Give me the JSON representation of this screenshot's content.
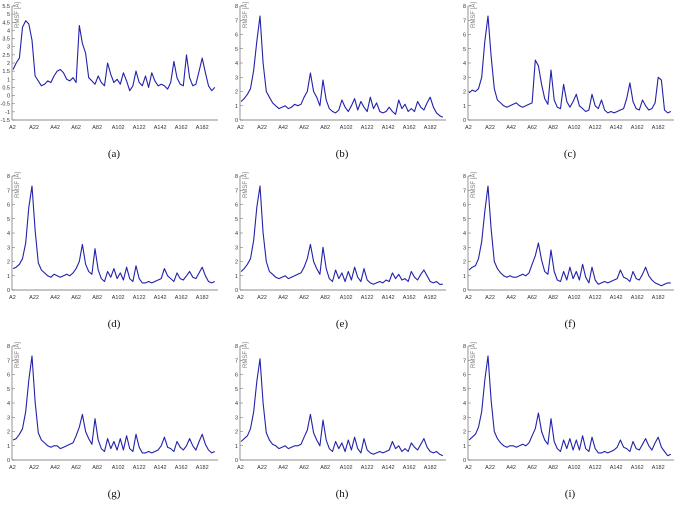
{
  "colors": {
    "line": "#2222aa",
    "axis": "#666666",
    "grid": "#d8d8d8"
  },
  "chart_data": [
    {
      "type": "line",
      "caption": "(a)",
      "ylabel": "RMSF [Å]",
      "xtick_labels": [
        "A2",
        "A22",
        "A42",
        "A62",
        "A82",
        "A102",
        "A122",
        "A142",
        "A162",
        "A182"
      ],
      "yticks": [
        -1.5,
        -1,
        -0.5,
        0,
        0.5,
        1,
        1.5,
        2,
        2.5,
        3,
        3.5,
        4,
        4.5,
        5,
        5.5
      ],
      "ylim": [
        -1.5,
        5.5
      ],
      "x": [
        1,
        4,
        7,
        10,
        13,
        16,
        19,
        22,
        25,
        28,
        31,
        34,
        37,
        40,
        43,
        46,
        49,
        52,
        55,
        58,
        61,
        64,
        67,
        70,
        73,
        76,
        79,
        82,
        85,
        88,
        91,
        94,
        97,
        100,
        103,
        106,
        109,
        112,
        115,
        118,
        121,
        124,
        127,
        130,
        133,
        136,
        139,
        142,
        145,
        148,
        151,
        154,
        157,
        160,
        163,
        166,
        169,
        172,
        175,
        178,
        181,
        184,
        187,
        190,
        193
      ],
      "values": [
        1.6,
        2.0,
        2.3,
        4.2,
        4.6,
        4.4,
        3.4,
        1.2,
        0.9,
        0.6,
        0.7,
        0.9,
        0.8,
        1.2,
        1.5,
        1.6,
        1.4,
        1.0,
        0.9,
        1.1,
        0.8,
        4.3,
        3.2,
        2.6,
        1.1,
        0.9,
        0.7,
        1.2,
        0.8,
        0.6,
        2.0,
        1.3,
        0.8,
        1.0,
        0.7,
        1.4,
        0.9,
        0.3,
        0.6,
        1.5,
        0.8,
        0.6,
        1.2,
        0.5,
        1.4,
        0.9,
        0.6,
        0.7,
        0.6,
        0.4,
        0.8,
        2.1,
        1.1,
        0.7,
        0.6,
        2.5,
        1.1,
        0.6,
        0.7,
        1.5,
        2.3,
        1.4,
        0.6,
        0.3,
        0.5
      ]
    },
    {
      "type": "line",
      "caption": "(b)",
      "ylabel": "RMSF [Å]",
      "xtick_labels": [
        "A2",
        "A22",
        "A42",
        "A62",
        "A82",
        "A102",
        "A122",
        "A142",
        "A162",
        "A182"
      ],
      "yticks": [
        0,
        1,
        2,
        3,
        4,
        5,
        6,
        7,
        8
      ],
      "ylim": [
        0,
        8
      ],
      "x": [
        1,
        4,
        7,
        10,
        13,
        16,
        19,
        22,
        25,
        28,
        31,
        34,
        37,
        40,
        43,
        46,
        49,
        52,
        55,
        58,
        61,
        64,
        67,
        70,
        73,
        76,
        79,
        82,
        85,
        88,
        91,
        94,
        97,
        100,
        103,
        106,
        109,
        112,
        115,
        118,
        121,
        124,
        127,
        130,
        133,
        136,
        139,
        142,
        145,
        148,
        151,
        154,
        157,
        160,
        163,
        166,
        169,
        172,
        175,
        178,
        181,
        184,
        187,
        190,
        193
      ],
      "values": [
        1.3,
        1.5,
        1.8,
        2.2,
        3.5,
        5.5,
        7.3,
        4.0,
        2.0,
        1.6,
        1.2,
        1.0,
        0.8,
        0.9,
        1.0,
        0.8,
        0.9,
        1.1,
        1.0,
        1.1,
        1.6,
        2.0,
        3.3,
        2.0,
        1.6,
        1.0,
        2.8,
        1.4,
        0.8,
        0.6,
        0.5,
        0.7,
        1.4,
        0.9,
        0.6,
        1.0,
        1.5,
        0.7,
        1.3,
        0.9,
        0.6,
        1.6,
        0.8,
        1.2,
        0.6,
        0.5,
        0.6,
        0.9,
        0.6,
        0.4,
        1.4,
        0.8,
        1.1,
        0.6,
        0.8,
        0.6,
        1.3,
        0.9,
        0.7,
        1.2,
        1.6,
        0.9,
        0.5,
        0.3,
        0.2
      ]
    },
    {
      "type": "line",
      "caption": "(c)",
      "ylabel": "RMSF [Å]",
      "xtick_labels": [
        "A2",
        "A22",
        "A42",
        "A62",
        "A82",
        "A102",
        "A122",
        "A142",
        "A162",
        "A182"
      ],
      "yticks": [
        0,
        1,
        2,
        3,
        4,
        5,
        6,
        7,
        8
      ],
      "ylim": [
        0,
        8
      ],
      "x": [
        1,
        4,
        7,
        10,
        13,
        16,
        19,
        22,
        25,
        28,
        31,
        34,
        37,
        40,
        43,
        46,
        49,
        52,
        55,
        58,
        61,
        64,
        67,
        70,
        73,
        76,
        79,
        82,
        85,
        88,
        91,
        94,
        97,
        100,
        103,
        106,
        109,
        112,
        115,
        118,
        121,
        124,
        127,
        130,
        133,
        136,
        139,
        142,
        145,
        148,
        151,
        154,
        157,
        160,
        163,
        166,
        169,
        172,
        175,
        178,
        181,
        184,
        187,
        190,
        193
      ],
      "values": [
        1.9,
        2.1,
        2.0,
        2.2,
        3.0,
        5.5,
        7.3,
        4.5,
        2.2,
        1.4,
        1.2,
        1.0,
        0.9,
        1.0,
        1.1,
        1.2,
        1.0,
        0.9,
        1.0,
        1.1,
        1.2,
        4.2,
        3.8,
        2.5,
        1.5,
        1.1,
        3.5,
        1.4,
        0.9,
        0.8,
        2.5,
        1.3,
        0.9,
        1.3,
        1.8,
        1.0,
        0.8,
        0.6,
        0.7,
        1.8,
        1.0,
        0.8,
        1.4,
        0.7,
        0.5,
        0.6,
        0.5,
        0.6,
        0.7,
        0.8,
        1.5,
        2.6,
        1.3,
        0.8,
        0.7,
        1.4,
        1.0,
        0.7,
        0.8,
        1.2,
        3.0,
        2.8,
        0.7,
        0.5,
        0.6
      ]
    },
    {
      "type": "line",
      "caption": "(d)",
      "ylabel": "RMSF [Å]",
      "xtick_labels": [
        "A2",
        "A22",
        "A42",
        "A62",
        "A82",
        "A102",
        "A122",
        "A142",
        "A162",
        "A182"
      ],
      "yticks": [
        0,
        1,
        2,
        3,
        4,
        5,
        6,
        7,
        8
      ],
      "ylim": [
        0,
        8
      ],
      "x": [
        1,
        4,
        7,
        10,
        13,
        16,
        19,
        22,
        25,
        28,
        31,
        34,
        37,
        40,
        43,
        46,
        49,
        52,
        55,
        58,
        61,
        64,
        67,
        70,
        73,
        76,
        79,
        82,
        85,
        88,
        91,
        94,
        97,
        100,
        103,
        106,
        109,
        112,
        115,
        118,
        121,
        124,
        127,
        130,
        133,
        136,
        139,
        142,
        145,
        148,
        151,
        154,
        157,
        160,
        163,
        166,
        169,
        172,
        175,
        178,
        181,
        184,
        187,
        190,
        193
      ],
      "values": [
        1.5,
        1.6,
        1.8,
        2.2,
        3.3,
        5.8,
        7.3,
        4.2,
        1.9,
        1.4,
        1.2,
        1.0,
        0.9,
        1.1,
        1.0,
        0.9,
        1.0,
        1.1,
        1.0,
        1.2,
        1.5,
        2.0,
        3.2,
        1.8,
        1.3,
        1.1,
        2.9,
        1.4,
        0.8,
        0.6,
        1.3,
        0.9,
        1.5,
        0.8,
        1.2,
        0.7,
        1.6,
        0.8,
        0.6,
        1.7,
        0.8,
        0.5,
        0.5,
        0.6,
        0.5,
        0.6,
        0.7,
        0.8,
        1.5,
        1.0,
        0.8,
        0.6,
        1.2,
        0.8,
        0.7,
        1.0,
        1.3,
        0.9,
        0.8,
        1.2,
        1.6,
        1.0,
        0.6,
        0.5,
        0.6
      ]
    },
    {
      "type": "line",
      "caption": "(e)",
      "ylabel": "RMSF [Å]",
      "xtick_labels": [
        "A2",
        "A22",
        "A42",
        "A62",
        "A82",
        "A102",
        "A122",
        "A142",
        "A162",
        "A182"
      ],
      "yticks": [
        0,
        1,
        2,
        3,
        4,
        5,
        6,
        7,
        8
      ],
      "ylim": [
        0,
        8
      ],
      "x": [
        1,
        4,
        7,
        10,
        13,
        16,
        19,
        22,
        25,
        28,
        31,
        34,
        37,
        40,
        43,
        46,
        49,
        52,
        55,
        58,
        61,
        64,
        67,
        70,
        73,
        76,
        79,
        82,
        85,
        88,
        91,
        94,
        97,
        100,
        103,
        106,
        109,
        112,
        115,
        118,
        121,
        124,
        127,
        130,
        133,
        136,
        139,
        142,
        145,
        148,
        151,
        154,
        157,
        160,
        163,
        166,
        169,
        172,
        175,
        178,
        181,
        184,
        187,
        190,
        193
      ],
      "values": [
        1.3,
        1.5,
        1.8,
        2.2,
        3.5,
        5.8,
        7.3,
        4.0,
        2.0,
        1.3,
        1.1,
        0.9,
        0.8,
        0.9,
        1.0,
        0.8,
        0.9,
        1.0,
        1.1,
        1.2,
        1.6,
        2.2,
        3.2,
        2.0,
        1.5,
        1.1,
        3.0,
        1.5,
        0.8,
        0.6,
        1.4,
        0.8,
        1.2,
        0.6,
        1.3,
        0.7,
        1.6,
        0.9,
        0.6,
        1.5,
        0.7,
        0.5,
        0.4,
        0.5,
        0.6,
        0.5,
        0.7,
        0.6,
        1.2,
        0.8,
        1.1,
        0.7,
        0.8,
        0.6,
        1.3,
        0.9,
        0.7,
        1.1,
        1.4,
        1.0,
        0.6,
        0.5,
        0.6,
        0.4,
        0.4
      ]
    },
    {
      "type": "line",
      "caption": "(f)",
      "ylabel": "RMSF [Å]",
      "xtick_labels": [
        "A2",
        "A22",
        "A42",
        "A62",
        "A82",
        "A102",
        "A122",
        "A142",
        "A162",
        "A182"
      ],
      "yticks": [
        0,
        1,
        2,
        3,
        4,
        5,
        6,
        7,
        8
      ],
      "ylim": [
        0,
        8
      ],
      "x": [
        1,
        4,
        7,
        10,
        13,
        16,
        19,
        22,
        25,
        28,
        31,
        34,
        37,
        40,
        43,
        46,
        49,
        52,
        55,
        58,
        61,
        64,
        67,
        70,
        73,
        76,
        79,
        82,
        85,
        88,
        91,
        94,
        97,
        100,
        103,
        106,
        109,
        112,
        115,
        118,
        121,
        124,
        127,
        130,
        133,
        136,
        139,
        142,
        145,
        148,
        151,
        154,
        157,
        160,
        163,
        166,
        169,
        172,
        175,
        178,
        181,
        184,
        187,
        190,
        193
      ],
      "values": [
        1.4,
        1.6,
        1.7,
        2.2,
        3.4,
        5.5,
        7.3,
        4.3,
        2.0,
        1.5,
        1.2,
        1.0,
        0.9,
        1.0,
        0.9,
        0.9,
        1.0,
        1.1,
        1.0,
        1.2,
        1.8,
        2.4,
        3.3,
        2.1,
        1.3,
        1.1,
        2.8,
        1.3,
        0.7,
        0.6,
        1.3,
        0.7,
        1.6,
        0.8,
        1.3,
        0.7,
        1.8,
        0.9,
        0.5,
        1.6,
        0.7,
        0.4,
        0.5,
        0.6,
        0.5,
        0.6,
        0.7,
        0.8,
        1.4,
        0.9,
        0.8,
        0.6,
        1.3,
        0.8,
        0.7,
        1.1,
        1.6,
        1.0,
        0.7,
        0.5,
        0.4,
        0.3,
        0.4,
        0.5,
        0.5
      ]
    },
    {
      "type": "line",
      "caption": "(g)",
      "ylabel": "RMSF [Å]",
      "xtick_labels": [
        "A2",
        "A22",
        "A42",
        "A62",
        "A82",
        "A102",
        "A122",
        "A142",
        "A162",
        "A182"
      ],
      "yticks": [
        0,
        1,
        2,
        3,
        4,
        5,
        6,
        7,
        8
      ],
      "ylim": [
        0,
        8
      ],
      "x": [
        1,
        4,
        7,
        10,
        13,
        16,
        19,
        22,
        25,
        28,
        31,
        34,
        37,
        40,
        43,
        46,
        49,
        52,
        55,
        58,
        61,
        64,
        67,
        70,
        73,
        76,
        79,
        82,
        85,
        88,
        91,
        94,
        97,
        100,
        103,
        106,
        109,
        112,
        115,
        118,
        121,
        124,
        127,
        130,
        133,
        136,
        139,
        142,
        145,
        148,
        151,
        154,
        157,
        160,
        163,
        166,
        169,
        172,
        175,
        178,
        181,
        184,
        187,
        190,
        193
      ],
      "values": [
        1.4,
        1.5,
        1.8,
        2.2,
        3.4,
        5.6,
        7.3,
        4.1,
        1.9,
        1.4,
        1.2,
        1.0,
        0.9,
        1.0,
        1.0,
        0.8,
        0.9,
        1.0,
        1.1,
        1.2,
        1.7,
        2.3,
        3.2,
        2.0,
        1.5,
        1.1,
        2.9,
        1.4,
        0.8,
        0.6,
        1.5,
        0.8,
        1.3,
        0.7,
        1.5,
        0.7,
        1.7,
        0.8,
        0.6,
        1.8,
        0.9,
        0.5,
        0.5,
        0.6,
        0.5,
        0.6,
        0.7,
        1.0,
        1.6,
        0.9,
        0.8,
        0.6,
        1.3,
        0.9,
        0.7,
        1.0,
        1.5,
        1.0,
        0.7,
        1.3,
        1.8,
        1.1,
        0.7,
        0.5,
        0.6
      ]
    },
    {
      "type": "line",
      "caption": "(h)",
      "ylabel": "RMSF [Å]",
      "xtick_labels": [
        "A2",
        "A22",
        "A42",
        "A62",
        "A82",
        "A102",
        "A122",
        "A142",
        "A162",
        "A182"
      ],
      "yticks": [
        0,
        1,
        2,
        3,
        4,
        5,
        6,
        7,
        8
      ],
      "ylim": [
        0,
        8
      ],
      "x": [
        1,
        4,
        7,
        10,
        13,
        16,
        19,
        22,
        25,
        28,
        31,
        34,
        37,
        40,
        43,
        46,
        49,
        52,
        55,
        58,
        61,
        64,
        67,
        70,
        73,
        76,
        79,
        82,
        85,
        88,
        91,
        94,
        97,
        100,
        103,
        106,
        109,
        112,
        115,
        118,
        121,
        124,
        127,
        130,
        133,
        136,
        139,
        142,
        145,
        148,
        151,
        154,
        157,
        160,
        163,
        166,
        169,
        172,
        175,
        178,
        181,
        184,
        187,
        190,
        193
      ],
      "values": [
        1.3,
        1.5,
        1.7,
        2.2,
        3.4,
        5.5,
        7.1,
        4.0,
        1.9,
        1.4,
        1.1,
        1.0,
        0.8,
        0.9,
        1.0,
        0.8,
        0.9,
        1.0,
        1.0,
        1.1,
        1.6,
        2.1,
        3.2,
        1.9,
        1.4,
        1.0,
        2.8,
        1.4,
        0.8,
        0.6,
        1.3,
        0.8,
        1.2,
        0.6,
        1.4,
        0.7,
        1.6,
        0.8,
        0.5,
        1.5,
        0.7,
        0.5,
        0.4,
        0.5,
        0.6,
        0.5,
        0.6,
        0.7,
        1.3,
        0.8,
        1.0,
        0.6,
        0.8,
        0.6,
        1.2,
        0.9,
        0.7,
        1.1,
        1.5,
        0.9,
        0.6,
        0.5,
        0.6,
        0.4,
        0.3
      ]
    },
    {
      "type": "line",
      "caption": "(i)",
      "ylabel": "RMSF [Å]",
      "xtick_labels": [
        "A2",
        "A22",
        "A42",
        "A62",
        "A82",
        "A102",
        "A122",
        "A142",
        "A162",
        "A182"
      ],
      "yticks": [
        0,
        1,
        2,
        3,
        4,
        5,
        6,
        7,
        8
      ],
      "ylim": [
        0,
        8
      ],
      "x": [
        1,
        4,
        7,
        10,
        13,
        16,
        19,
        22,
        25,
        28,
        31,
        34,
        37,
        40,
        43,
        46,
        49,
        52,
        55,
        58,
        61,
        64,
        67,
        70,
        73,
        76,
        79,
        82,
        85,
        88,
        91,
        94,
        97,
        100,
        103,
        106,
        109,
        112,
        115,
        118,
        121,
        124,
        127,
        130,
        133,
        136,
        139,
        142,
        145,
        148,
        151,
        154,
        157,
        160,
        163,
        166,
        169,
        172,
        175,
        178,
        181,
        184,
        187,
        190,
        193
      ],
      "values": [
        1.4,
        1.6,
        1.8,
        2.3,
        3.4,
        5.6,
        7.3,
        4.2,
        2.0,
        1.5,
        1.2,
        1.0,
        0.9,
        1.0,
        1.0,
        0.9,
        1.0,
        1.1,
        1.0,
        1.2,
        1.7,
        2.2,
        3.3,
        2.0,
        1.4,
        1.1,
        2.9,
        1.3,
        0.8,
        0.6,
        1.4,
        0.8,
        1.5,
        0.7,
        1.4,
        0.7,
        1.7,
        0.8,
        0.6,
        1.6,
        0.8,
        0.5,
        0.5,
        0.6,
        0.5,
        0.6,
        0.7,
        0.9,
        1.4,
        0.9,
        0.8,
        0.6,
        1.3,
        0.8,
        0.7,
        1.1,
        1.5,
        1.0,
        0.7,
        1.2,
        1.6,
        0.9,
        0.6,
        0.3,
        0.4
      ]
    }
  ]
}
